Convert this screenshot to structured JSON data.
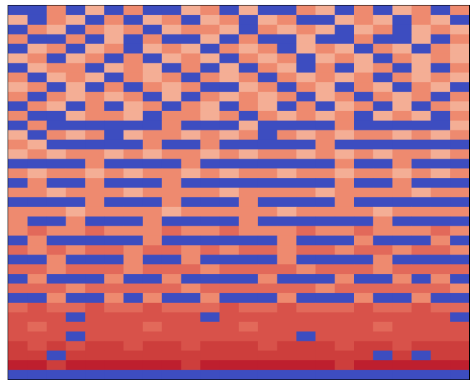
{
  "chart_data": {
    "type": "heatmap",
    "colors": [
      "#3d4dc0",
      "#8fb1fe",
      "#c9d7f0",
      "#f6c4ad",
      "#f4ae95",
      "#ee8a6f",
      "#e2695a",
      "#d8524a",
      "#cd3e3c",
      "#be1f2e"
    ],
    "values": [
      [
        0,
        0,
        5,
        0,
        4,
        0,
        5,
        0,
        0,
        4,
        5,
        0,
        4,
        0,
        0,
        5,
        4,
        0,
        5,
        0,
        4,
        5,
        0,
        5
      ],
      [
        4,
        0,
        5,
        4,
        0,
        5,
        0,
        4,
        5,
        0,
        4,
        5,
        0,
        4,
        5,
        0,
        0,
        4,
        5,
        4,
        0,
        5,
        4,
        0
      ],
      [
        0,
        5,
        4,
        0,
        5,
        4,
        5,
        0,
        4,
        5,
        5,
        4,
        0,
        5,
        4,
        5,
        4,
        0,
        4,
        5,
        0,
        4,
        5,
        4
      ],
      [
        5,
        0,
        0,
        5,
        0,
        4,
        0,
        5,
        0,
        0,
        4,
        0,
        5,
        0,
        0,
        4,
        0,
        0,
        5,
        0,
        0,
        4,
        0,
        5
      ],
      [
        0,
        4,
        5,
        0,
        4,
        5,
        0,
        4,
        5,
        4,
        0,
        5,
        4,
        5,
        0,
        4,
        5,
        4,
        0,
        5,
        4,
        0,
        5,
        4
      ],
      [
        4,
        5,
        0,
        4,
        5,
        0,
        5,
        0,
        4,
        5,
        4,
        0,
        5,
        4,
        5,
        0,
        4,
        5,
        4,
        0,
        5,
        4,
        5,
        4
      ],
      [
        0,
        4,
        5,
        5,
        0,
        4,
        5,
        4,
        0,
        5,
        0,
        4,
        0,
        5,
        4,
        0,
        5,
        0,
        4,
        5,
        0,
        4,
        0,
        5
      ],
      [
        5,
        0,
        4,
        5,
        4,
        0,
        5,
        4,
        5,
        0,
        5,
        4,
        5,
        0,
        5,
        4,
        5,
        4,
        5,
        0,
        5,
        4,
        5,
        4
      ],
      [
        4,
        5,
        0,
        4,
        0,
        5,
        0,
        5,
        4,
        5,
        0,
        0,
        4,
        5,
        0,
        5,
        4,
        0,
        5,
        4,
        0,
        5,
        4,
        0
      ],
      [
        5,
        0,
        5,
        4,
        5,
        4,
        5,
        0,
        4,
        0,
        5,
        4,
        5,
        4,
        5,
        0,
        4,
        5,
        0,
        5,
        4,
        5,
        0,
        5
      ],
      [
        0,
        5,
        4,
        0,
        5,
        0,
        4,
        5,
        0,
        5,
        4,
        0,
        5,
        4,
        0,
        5,
        0,
        4,
        5,
        0,
        4,
        0,
        5,
        4
      ],
      [
        5,
        0,
        0,
        4,
        5,
        5,
        4,
        0,
        5,
        5,
        4,
        5,
        0,
        5,
        4,
        5,
        4,
        5,
        0,
        4,
        5,
        4,
        0,
        5
      ],
      [
        0,
        5,
        0,
        0,
        0,
        0,
        0,
        0,
        5,
        0,
        0,
        0,
        4,
        0,
        0,
        0,
        0,
        5,
        0,
        0,
        0,
        0,
        0,
        4
      ],
      [
        4,
        0,
        5,
        4,
        5,
        0,
        4,
        5,
        5,
        4,
        5,
        4,
        5,
        0,
        5,
        4,
        5,
        4,
        5,
        5,
        4,
        5,
        4,
        5
      ],
      [
        5,
        4,
        0,
        0,
        0,
        0,
        0,
        5,
        0,
        0,
        5,
        0,
        0,
        0,
        0,
        0,
        5,
        0,
        0,
        0,
        0,
        0,
        0,
        0
      ],
      [
        4,
        5,
        4,
        5,
        5,
        4,
        5,
        4,
        5,
        5,
        4,
        5,
        4,
        5,
        5,
        4,
        5,
        4,
        5,
        4,
        5,
        5,
        4,
        5
      ],
      [
        0,
        0,
        0,
        0,
        5,
        0,
        0,
        0,
        0,
        5,
        0,
        0,
        0,
        0,
        0,
        0,
        0,
        5,
        0,
        0,
        5,
        0,
        0,
        0
      ],
      [
        5,
        4,
        5,
        5,
        4,
        5,
        4,
        5,
        5,
        4,
        5,
        4,
        5,
        5,
        4,
        5,
        5,
        4,
        5,
        5,
        4,
        5,
        4,
        5
      ],
      [
        0,
        5,
        0,
        0,
        5,
        0,
        0,
        0,
        5,
        0,
        0,
        0,
        0,
        0,
        0,
        0,
        0,
        5,
        0,
        0,
        5,
        0,
        0,
        0
      ],
      [
        5,
        5,
        4,
        5,
        5,
        5,
        4,
        5,
        5,
        5,
        5,
        4,
        5,
        5,
        5,
        5,
        4,
        5,
        5,
        5,
        5,
        4,
        5,
        5
      ],
      [
        0,
        0,
        0,
        0,
        5,
        0,
        0,
        0,
        5,
        0,
        0,
        0,
        5,
        0,
        0,
        0,
        0,
        5,
        0,
        0,
        0,
        0,
        0,
        0
      ],
      [
        5,
        5,
        5,
        4,
        5,
        5,
        5,
        5,
        4,
        5,
        5,
        5,
        5,
        5,
        4,
        5,
        5,
        5,
        5,
        4,
        5,
        5,
        5,
        5
      ],
      [
        5,
        0,
        0,
        5,
        0,
        0,
        0,
        5,
        0,
        0,
        0,
        0,
        5,
        0,
        0,
        0,
        0,
        0,
        0,
        5,
        0,
        0,
        0,
        0
      ],
      [
        5,
        6,
        5,
        5,
        6,
        5,
        5,
        5,
        6,
        5,
        5,
        6,
        5,
        5,
        5,
        6,
        5,
        5,
        6,
        5,
        5,
        5,
        6,
        5
      ],
      [
        0,
        5,
        0,
        0,
        0,
        0,
        0,
        5,
        0,
        0,
        0,
        0,
        0,
        0,
        5,
        0,
        0,
        0,
        5,
        0,
        0,
        0,
        5,
        0
      ],
      [
        6,
        5,
        6,
        5,
        6,
        6,
        5,
        6,
        6,
        5,
        6,
        5,
        6,
        6,
        5,
        6,
        6,
        5,
        6,
        6,
        5,
        6,
        6,
        5
      ],
      [
        0,
        0,
        5,
        0,
        0,
        0,
        5,
        0,
        0,
        5,
        0,
        0,
        0,
        0,
        5,
        0,
        0,
        0,
        0,
        5,
        0,
        0,
        0,
        0
      ],
      [
        6,
        6,
        5,
        6,
        6,
        6,
        5,
        6,
        6,
        6,
        5,
        6,
        6,
        6,
        6,
        5,
        6,
        6,
        6,
        5,
        6,
        6,
        6,
        6
      ],
      [
        0,
        5,
        0,
        0,
        0,
        5,
        0,
        0,
        5,
        0,
        0,
        0,
        0,
        5,
        0,
        0,
        0,
        5,
        0,
        0,
        5,
        0,
        5,
        0
      ],
      [
        6,
        6,
        6,
        5,
        6,
        6,
        6,
        6,
        6,
        5,
        6,
        6,
        6,
        6,
        6,
        6,
        5,
        6,
        6,
        6,
        6,
        6,
        6,
        5
      ],
      [
        0,
        0,
        5,
        0,
        0,
        5,
        0,
        5,
        0,
        0,
        5,
        0,
        0,
        0,
        5,
        0,
        0,
        0,
        5,
        0,
        0,
        5,
        0,
        0
      ],
      [
        6,
        7,
        6,
        6,
        7,
        6,
        6,
        7,
        6,
        6,
        6,
        7,
        6,
        6,
        7,
        6,
        6,
        6,
        7,
        6,
        6,
        7,
        6,
        6
      ],
      [
        7,
        7,
        7,
        0,
        7,
        7,
        7,
        7,
        7,
        7,
        0,
        7,
        7,
        7,
        7,
        7,
        7,
        7,
        7,
        7,
        7,
        7,
        7,
        0
      ],
      [
        7,
        6,
        7,
        7,
        7,
        7,
        7,
        6,
        7,
        7,
        7,
        7,
        6,
        7,
        7,
        7,
        7,
        7,
        7,
        6,
        7,
        7,
        7,
        7
      ],
      [
        7,
        7,
        7,
        0,
        7,
        7,
        7,
        7,
        7,
        7,
        7,
        7,
        7,
        7,
        7,
        0,
        7,
        7,
        7,
        7,
        7,
        7,
        7,
        7
      ],
      [
        8,
        7,
        8,
        7,
        8,
        8,
        7,
        8,
        8,
        7,
        8,
        8,
        8,
        7,
        8,
        8,
        8,
        7,
        8,
        8,
        7,
        8,
        8,
        8
      ],
      [
        8,
        8,
        0,
        8,
        8,
        8,
        8,
        8,
        8,
        8,
        8,
        8,
        8,
        8,
        8,
        8,
        8,
        8,
        8,
        0,
        8,
        0,
        8,
        8
      ],
      [
        9,
        9,
        8,
        9,
        9,
        9,
        9,
        9,
        9,
        8,
        9,
        9,
        9,
        9,
        9,
        9,
        9,
        8,
        9,
        9,
        9,
        9,
        9,
        9
      ],
      [
        0,
        0,
        0,
        0,
        0,
        0,
        0,
        0,
        0,
        0,
        0,
        0,
        0,
        0,
        0,
        0,
        0,
        0,
        0,
        0,
        0,
        0,
        0,
        0
      ]
    ]
  }
}
